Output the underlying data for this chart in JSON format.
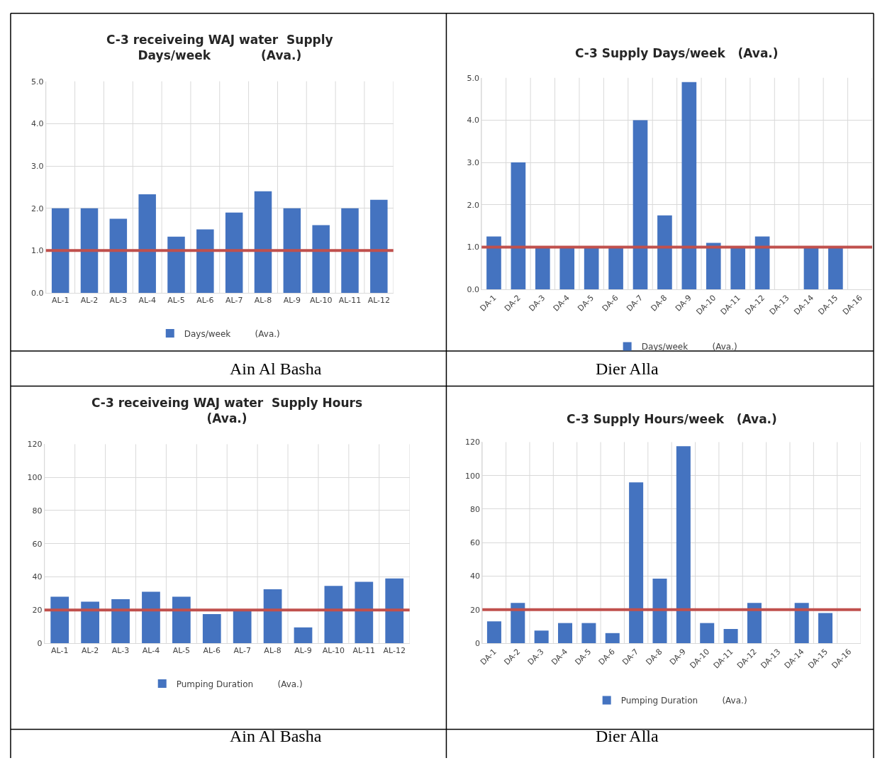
{
  "chart_data": [
    {
      "type": "bar",
      "title": "C-3 receiveing WAJ water  Supply\nDays/week            (Ava.)",
      "categories": [
        "AL-1",
        "AL-2",
        "AL-3",
        "AL-4",
        "AL-5",
        "AL-6",
        "AL-7",
        "AL-8",
        "AL-9",
        "AL-10",
        "AL-11",
        "AL-12"
      ],
      "series": [
        {
          "name": "Days/week         (Ava.)",
          "color": "#4473c0",
          "values": [
            2.0,
            2.0,
            1.75,
            2.33,
            1.33,
            1.5,
            1.9,
            2.4,
            2.0,
            1.6,
            2.0,
            2.2
          ]
        }
      ],
      "ylim": [
        0,
        5
      ],
      "yticks": [
        {
          "value": 0,
          "label": "0.0"
        },
        {
          "value": 1,
          "label": "1.0"
        },
        {
          "value": 2,
          "label": "2.0"
        },
        {
          "value": 3,
          "label": "3.0"
        },
        {
          "value": 4,
          "label": "4.0"
        },
        {
          "value": 5,
          "label": "5.0"
        }
      ],
      "grid": true,
      "legend": "bottom",
      "ref_lines": [
        {
          "axis": "y",
          "value": 1.0,
          "color": "#c0504d"
        }
      ],
      "annotations": [
        "Ain Al Basha"
      ]
    },
    {
      "type": "bar",
      "title": "C-3 Supply Days/week   (Ava.)",
      "categories": [
        "DA-1",
        "DA-2",
        "DA-3",
        "DA-4",
        "DA-5",
        "DA-6",
        "DA-7",
        "DA-8",
        "DA-9",
        "DA-10",
        "DA-11",
        "DA-12",
        "DA-13",
        "DA-14",
        "DA-15",
        "DA-16"
      ],
      "series": [
        {
          "name": "Days/week         (Ava.)",
          "color": "#4473c0",
          "values": [
            1.25,
            3.0,
            1.0,
            1.0,
            1.0,
            1.0,
            4.0,
            1.75,
            4.9,
            1.1,
            1.0,
            1.25,
            null,
            1.0,
            1.0,
            null
          ]
        }
      ],
      "ylim": [
        0,
        5
      ],
      "yticks": [
        {
          "value": 0,
          "label": "0.0"
        },
        {
          "value": 1,
          "label": "1.0"
        },
        {
          "value": 2,
          "label": "2.0"
        },
        {
          "value": 3,
          "label": "3.0"
        },
        {
          "value": 4,
          "label": "4.0"
        },
        {
          "value": 5,
          "label": "5.0"
        }
      ],
      "grid": true,
      "legend": "bottom",
      "ref_lines": [
        {
          "axis": "y",
          "value": 1.0,
          "color": "#c0504d"
        }
      ],
      "annotations": [
        "Dier Alla"
      ]
    },
    {
      "type": "bar",
      "title": "C-3 receiveing WAJ water  Supply Hours\n(Ava.)",
      "categories": [
        "AL-1",
        "AL-2",
        "AL-3",
        "AL-4",
        "AL-5",
        "AL-6",
        "AL-7",
        "AL-8",
        "AL-9",
        "AL-10",
        "AL-11",
        "AL-12"
      ],
      "series": [
        {
          "name": "Pumping Duration         (Ava.)",
          "color": "#4473c0",
          "values": [
            28,
            25,
            26.5,
            31,
            28,
            17.5,
            20,
            32.5,
            9.5,
            34.5,
            37,
            39
          ]
        }
      ],
      "ylim": [
        0,
        120
      ],
      "yticks": [
        0,
        20,
        40,
        60,
        80,
        100,
        120
      ],
      "grid": true,
      "legend": "bottom",
      "ref_lines": [
        {
          "axis": "y",
          "value": 20,
          "color": "#c0504d"
        }
      ],
      "annotations": [
        "Ain Al Basha"
      ]
    },
    {
      "type": "bar",
      "title": "C-3 Supply Hours/week   (Ava.)",
      "categories": [
        "DA-1",
        "DA-2",
        "DA-3",
        "DA-4",
        "DA-5",
        "DA-6",
        "DA-7",
        "DA-8",
        "DA-9",
        "DA-10",
        "DA-11",
        "DA-12",
        "DA-13",
        "DA-14",
        "DA-15",
        "DA-16"
      ],
      "series": [
        {
          "name": "Pumping Duration         (Ava.)",
          "color": "#4473c0",
          "values": [
            13,
            24,
            7.5,
            12,
            12,
            6,
            96,
            38.5,
            117.5,
            12,
            8.5,
            24,
            null,
            24,
            18,
            null
          ]
        }
      ],
      "ylim": [
        0,
        120
      ],
      "yticks": [
        0,
        20,
        40,
        60,
        80,
        100,
        120
      ],
      "grid": true,
      "legend": "bottom",
      "ref_lines": [
        {
          "axis": "y",
          "value": 20,
          "color": "#c0504d"
        }
      ],
      "annotations": [
        "Dier Alla"
      ]
    }
  ]
}
